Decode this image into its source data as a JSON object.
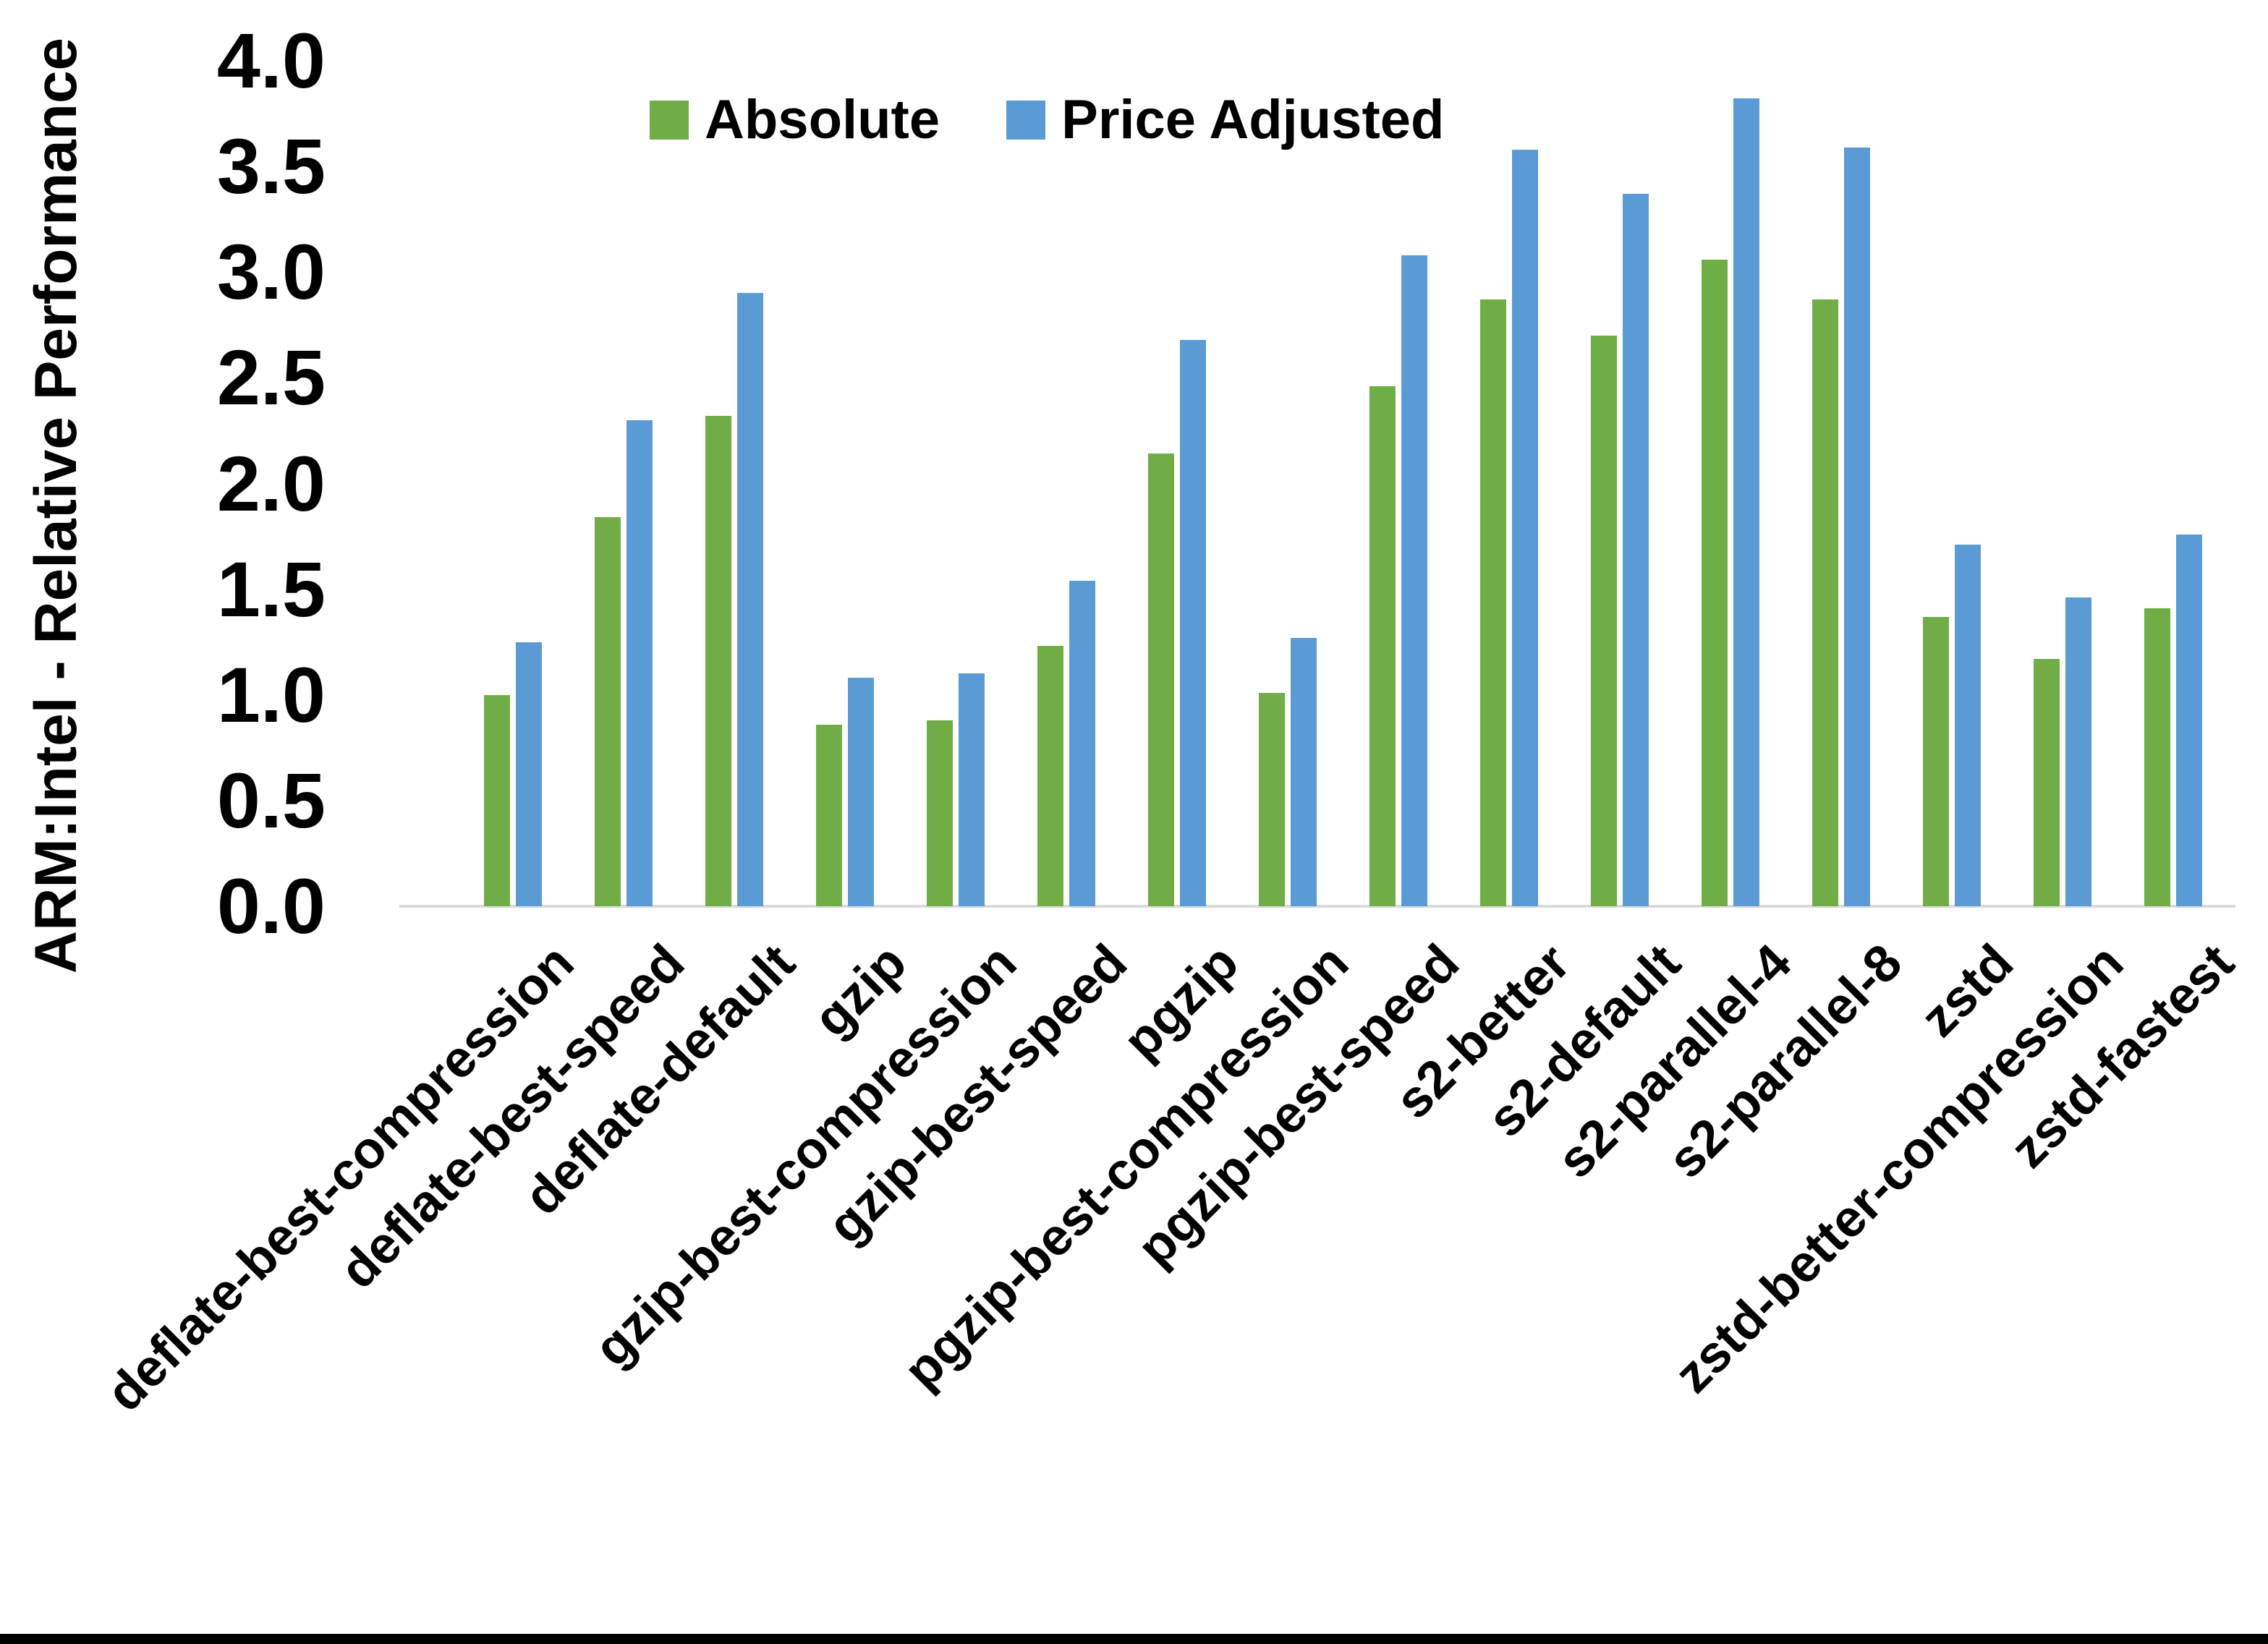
{
  "page": {
    "background": "#FFFFFF",
    "bottom_border_color": "#000000"
  },
  "chart_data": {
    "type": "bar",
    "title": "",
    "ylabel": "ARM:Intel - Relative Performance",
    "xlabel": "",
    "ylim": [
      0.0,
      4.0
    ],
    "ytick_step": 0.5,
    "ytick_labels": [
      "4.0",
      "3.5",
      "3.0",
      "2.5",
      "2.0",
      "1.5",
      "1.0",
      "0.5",
      "0.0"
    ],
    "grid": false,
    "axis_line_color": "#D9D9D9",
    "text_color": "#000000",
    "legend": {
      "position": "top-center",
      "entries": [
        "Absolute",
        "Price Adjusted"
      ]
    },
    "categories": [
      "deflate-best-compression",
      "deflate-best-speed",
      "deflate-default",
      "gzip",
      "gzip-best-compression",
      "gzip-best-speed",
      "pgzip",
      "pgzip-best-compression",
      "pgzip-best-speed",
      "s2-better",
      "s2-default",
      "s2-parallel-4",
      "s2-parallel-8",
      "zstd",
      "zstd-better-compression",
      "zstd-fastest"
    ],
    "series": [
      {
        "name": "Absolute",
        "color": "#70AD47",
        "values": [
          1.0,
          1.84,
          2.32,
          0.86,
          0.88,
          1.23,
          2.14,
          1.01,
          2.46,
          2.87,
          2.7,
          3.06,
          2.87,
          1.37,
          1.17,
          1.41
        ]
      },
      {
        "name": "Price Adjusted",
        "color": "#5B9BD5",
        "values": [
          1.25,
          2.3,
          2.9,
          1.08,
          1.1,
          1.54,
          2.68,
          1.27,
          3.08,
          3.58,
          3.37,
          3.82,
          3.59,
          1.71,
          1.46,
          1.76
        ]
      }
    ]
  }
}
